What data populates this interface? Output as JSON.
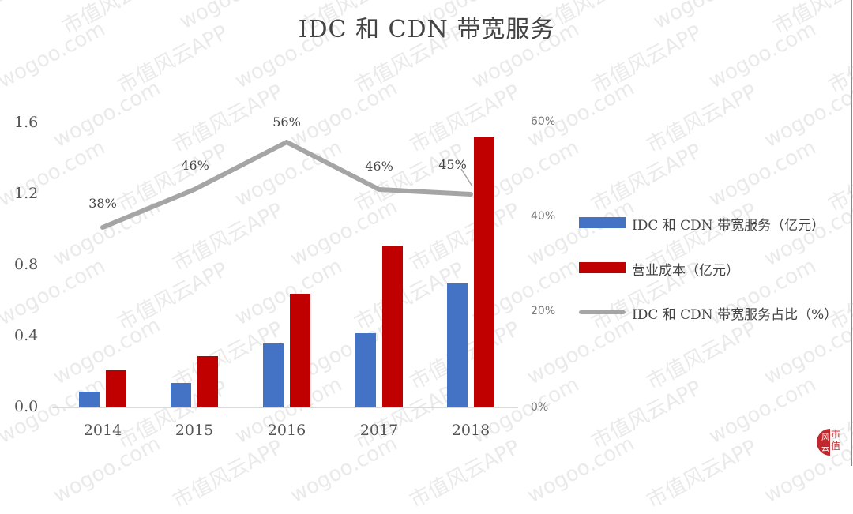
{
  "title": "IDC 和 CDN 带宽服务",
  "left_axis": {
    "ticks": [
      "1.6",
      "1.2",
      "0.8",
      "0.4",
      "0.0"
    ]
  },
  "right_axis": {
    "ticks": [
      "60%",
      "40%",
      "20%",
      "0%"
    ]
  },
  "x_axis": {
    "categories": [
      "2014",
      "2015",
      "2016",
      "2017",
      "2018"
    ]
  },
  "point_labels": [
    "38%",
    "46%",
    "56%",
    "46%",
    "45%"
  ],
  "legend": {
    "items": [
      {
        "label": "IDC 和 CDN 带宽服务（亿元）",
        "color": "#4472C4"
      },
      {
        "label": "营业成本（亿元）",
        "color": "#C00000"
      },
      {
        "label": "IDC 和 CDN 带宽服务占比（%）",
        "color": "#A5A5A5"
      }
    ]
  },
  "watermark": {
    "text_a": "wogoo.com",
    "text_b": "市值风云APP"
  },
  "logo": {
    "text": "市值"
  },
  "chart_data": {
    "type": "bar",
    "title": "IDC 和 CDN 带宽服务",
    "categories": [
      "2014",
      "2015",
      "2016",
      "2017",
      "2018"
    ],
    "series": [
      {
        "name": "IDC 和 CDN 带宽服务（亿元）",
        "type": "bar",
        "axis": "left",
        "color": "#4472C4",
        "values": [
          0.09,
          0.14,
          0.36,
          0.42,
          0.7
        ]
      },
      {
        "name": "营业成本（亿元）",
        "type": "bar",
        "axis": "left",
        "color": "#C00000",
        "values": [
          0.21,
          0.29,
          0.64,
          0.91,
          1.52
        ]
      },
      {
        "name": "IDC 和 CDN 带宽服务占比（%）",
        "type": "line",
        "axis": "right",
        "color": "#A5A5A5",
        "values": [
          38,
          46,
          56,
          46,
          45
        ],
        "labels": [
          "38%",
          "46%",
          "56%",
          "46%",
          "45%"
        ]
      }
    ],
    "xlabel": "",
    "ylabel": "",
    "ylim": [
      0,
      1.6
    ],
    "y2lim": [
      0,
      60
    ],
    "yticks": [
      0.0,
      0.4,
      0.8,
      1.2,
      1.6
    ],
    "y2ticks": [
      "0%",
      "20%",
      "40%",
      "60%"
    ],
    "grid": false,
    "legend_position": "right"
  }
}
